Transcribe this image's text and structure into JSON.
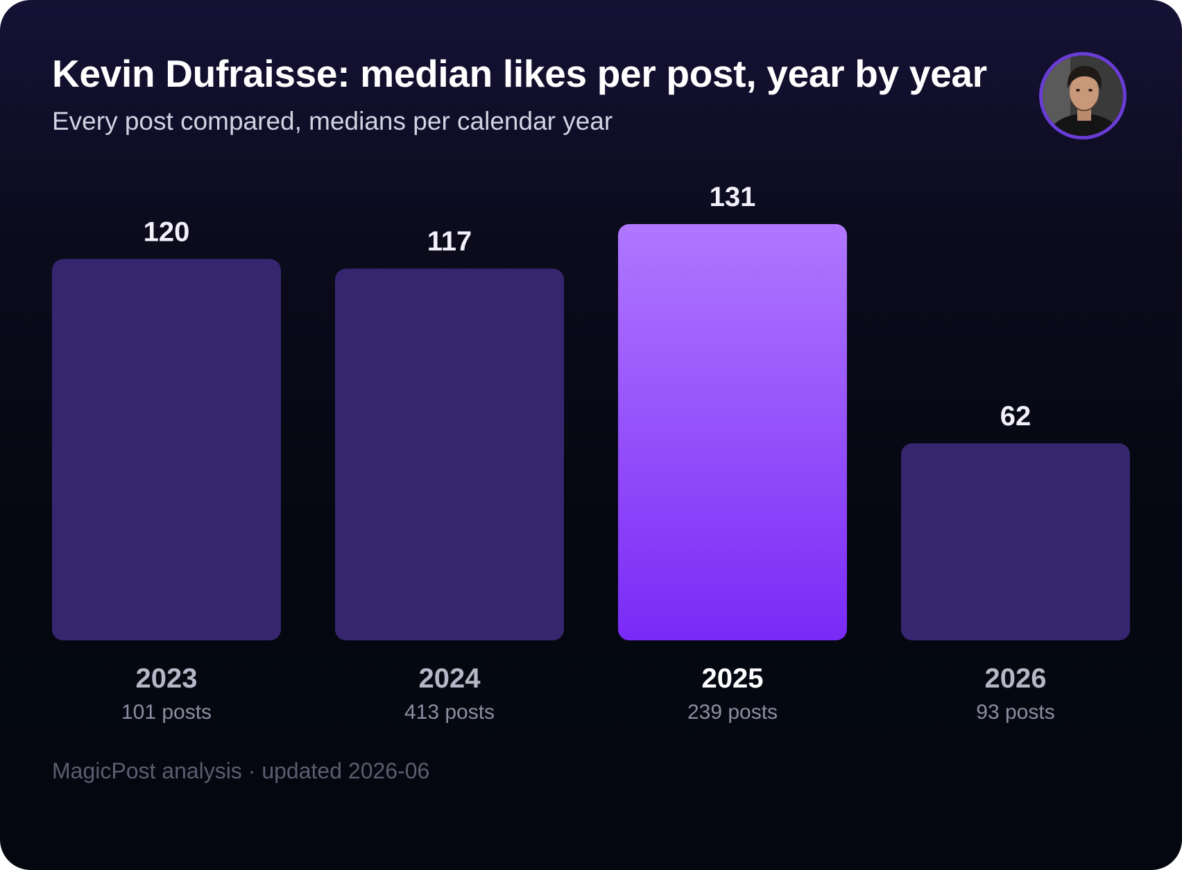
{
  "title": "Kevin Dufraisse: median likes per post, year by year",
  "subtitle": "Every post compared, medians per calendar year",
  "footer": "MagicPost analysis · updated 2026-06",
  "avatar": {
    "icon": "person-portrait-icon"
  },
  "colors": {
    "bar": "#36266f",
    "highlight_top": "#b077ff",
    "highlight_bottom": "#7a2af6",
    "avatar_ring": "#6a3cd6"
  },
  "chart_data": {
    "type": "bar",
    "categories": [
      "2023",
      "2024",
      "2025",
      "2026"
    ],
    "values": [
      120,
      117,
      131,
      62
    ],
    "post_counts": [
      "101 posts",
      "413 posts",
      "239 posts",
      "93 posts"
    ],
    "highlight": "2025",
    "ylim": [
      0,
      131
    ],
    "grid": false,
    "legend": "none"
  }
}
